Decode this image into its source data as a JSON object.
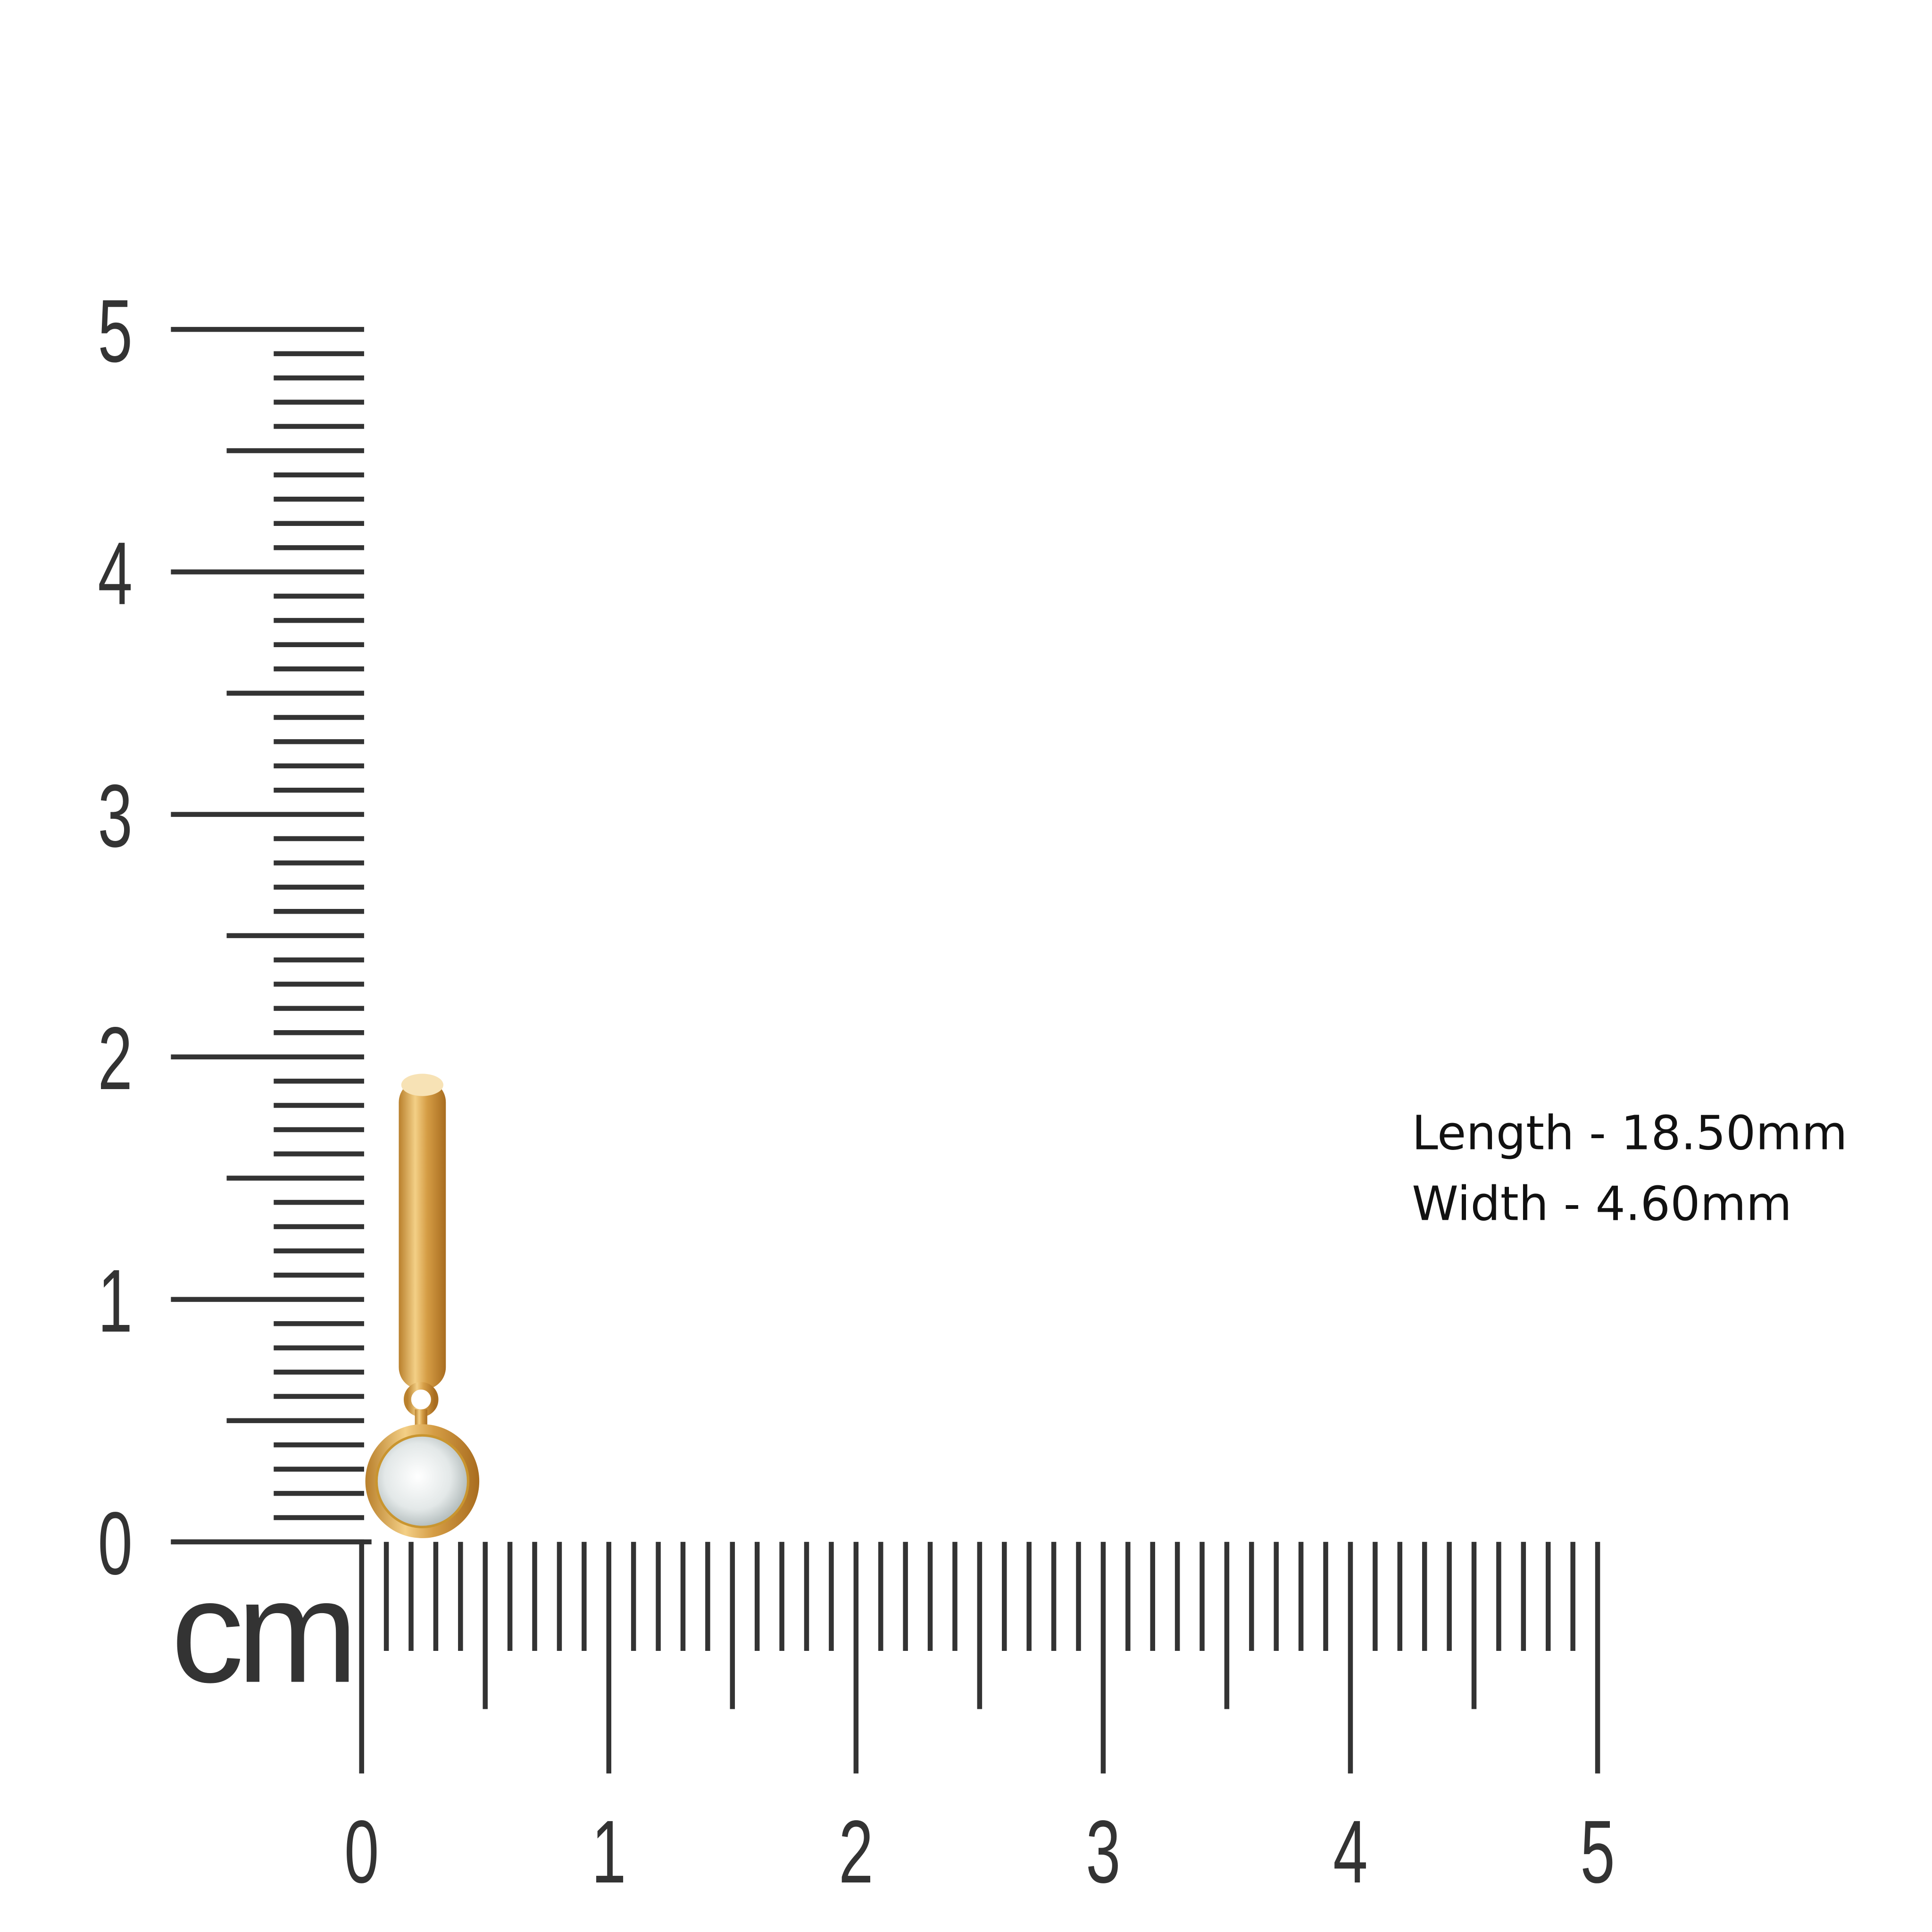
{
  "vertical_ruler": {
    "labels": [
      "0",
      "1",
      "2",
      "3",
      "4",
      "5"
    ]
  },
  "horizontal_ruler": {
    "labels": [
      "0",
      "1",
      "2",
      "3",
      "4",
      "5"
    ],
    "unit": "cm"
  },
  "specs": {
    "length": "Length - 18.50mm",
    "width": "Width - 4.60mm"
  }
}
